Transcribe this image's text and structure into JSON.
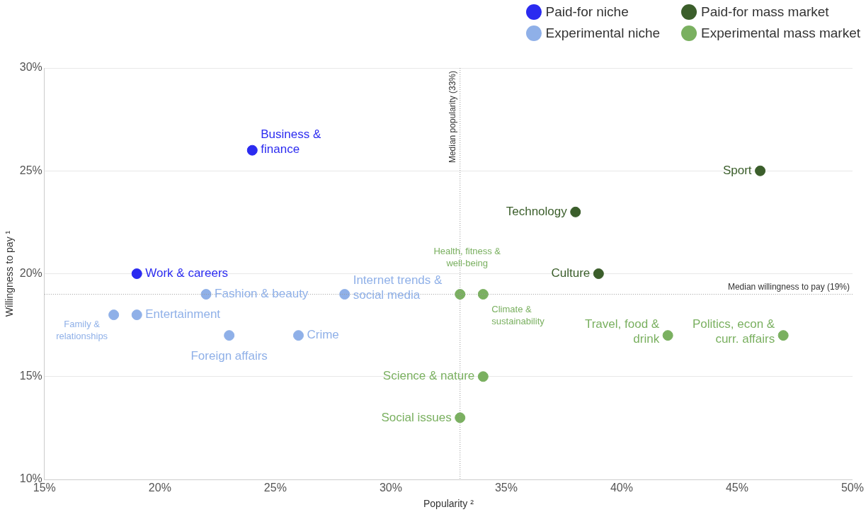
{
  "chart_data": {
    "type": "scatter",
    "xlabel": "Popularity ²",
    "ylabel": "Willingness to pay ¹",
    "xlim": [
      15,
      50
    ],
    "ylim": [
      10,
      30
    ],
    "xticks": [
      {
        "value": 15,
        "label": "15%"
      },
      {
        "value": 20,
        "label": "20%"
      },
      {
        "value": 25,
        "label": "25%"
      },
      {
        "value": 30,
        "label": "30%"
      },
      {
        "value": 35,
        "label": "35%"
      },
      {
        "value": 40,
        "label": "40%"
      },
      {
        "value": 45,
        "label": "45%"
      },
      {
        "value": 50,
        "label": "50%"
      }
    ],
    "yticks": [
      {
        "value": 10,
        "label": "10%"
      },
      {
        "value": 15,
        "label": "15%"
      },
      {
        "value": 20,
        "label": "20%"
      },
      {
        "value": 25,
        "label": "25%"
      },
      {
        "value": 30,
        "label": "30%"
      }
    ],
    "grid": "y",
    "legend": "top right",
    "marker": "circle",
    "series": [
      {
        "name": "Paid-for niche",
        "color": "#2b2bf0",
        "x": [
          24,
          19
        ],
        "values": [
          26,
          20
        ],
        "value_labels": [
          "Business &\nfinance",
          "Work & careers"
        ]
      },
      {
        "name": "Paid-for mass market",
        "color": "#3b5e2b",
        "x": [
          46,
          38,
          39
        ],
        "values": [
          25,
          23,
          20
        ],
        "value_labels": [
          "Sport",
          "Technology",
          "Culture"
        ]
      },
      {
        "name": "Experimental niche",
        "color": "#8fb0e8",
        "x": [
          18,
          19,
          22,
          23,
          26,
          28
        ],
        "values": [
          18,
          18,
          19,
          17,
          17,
          19
        ],
        "value_labels": [
          "Family &\nrelationships",
          "Entertainment",
          "Fashion & beauty",
          "Foreign affairs",
          "Crime",
          "Internet trends &\nsocial media"
        ]
      },
      {
        "name": "Experimental mass market",
        "color": "#7ab060",
        "x": [
          33,
          34,
          42,
          47,
          34,
          33
        ],
        "values": [
          19,
          19,
          17,
          17,
          15,
          13
        ],
        "value_labels": [
          "Health, fitness &\nwell-being",
          "Climate &\nsustainability",
          "Travel, food &\ndrink",
          "Politics, econ &\ncurr. affairs",
          "Science & nature",
          "Social issues"
        ]
      }
    ],
    "ref_lines": [
      {
        "axis": "x",
        "value": 33,
        "label": "Median popularity (33%)",
        "line_style": "dotted",
        "color": "#999999"
      },
      {
        "axis": "y",
        "value": 19,
        "label": "Median willingness to pay (19%)",
        "line_style": "dotted",
        "color": "#999999"
      }
    ]
  }
}
